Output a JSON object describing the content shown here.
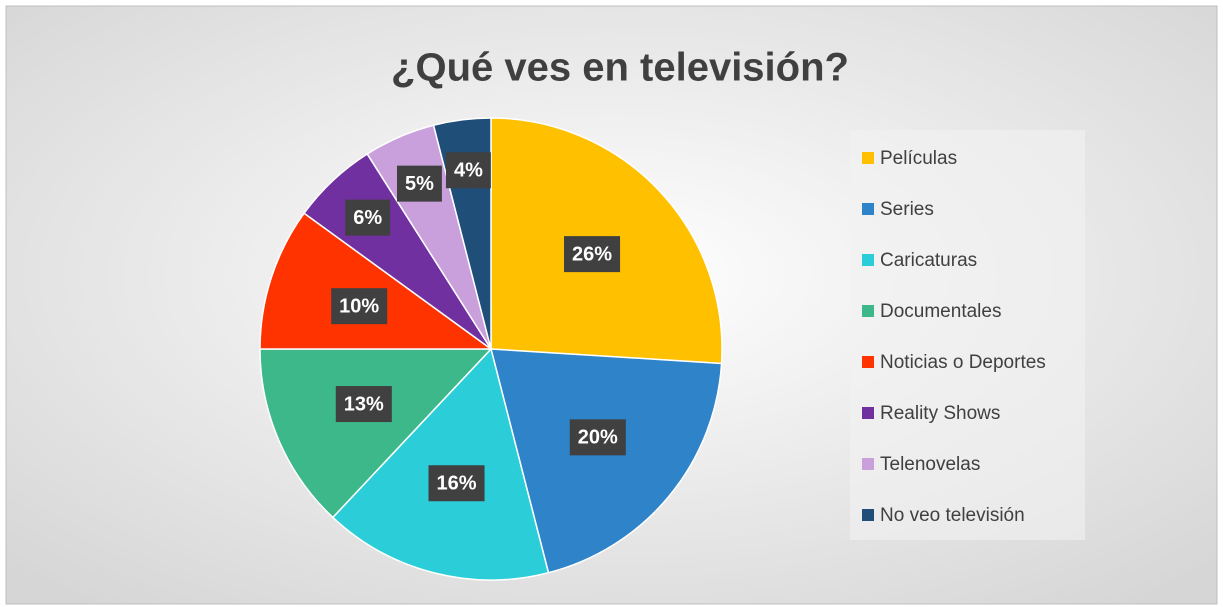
{
  "chart_data": {
    "type": "pie",
    "title": "¿Qué ves en televisión?",
    "categories": [
      "Películas",
      "Series",
      "Caricaturas",
      "Documentales",
      "Noticias o Deportes",
      "Reality Shows",
      "Telenovelas",
      "No veo televisión"
    ],
    "values": [
      26,
      20,
      16,
      13,
      10,
      6,
      5,
      4
    ],
    "value_labels": [
      "26%",
      "20%",
      "16%",
      "13%",
      "10%",
      "6%",
      "5%",
      "4%"
    ],
    "colors": [
      "#FFC000",
      "#2E83C9",
      "#2BCED8",
      "#3CB88A",
      "#FF3300",
      "#7030A0",
      "#C9A0DC",
      "#1F4E79"
    ],
    "legend": "right"
  }
}
